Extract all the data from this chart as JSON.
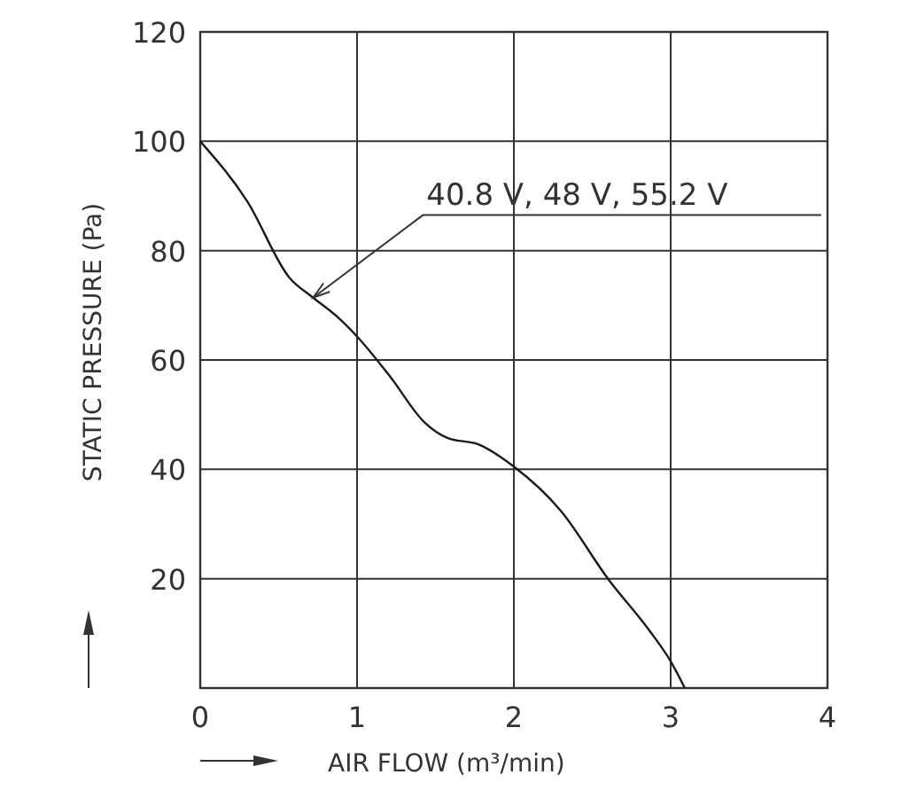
{
  "chart_data": {
    "type": "line",
    "xlabel": "AIR FLOW (m³/min)",
    "ylabel": "STATIC PRESSURE (Pa)",
    "xlim": [
      0,
      4
    ],
    "xticks": [
      0,
      1,
      2,
      3,
      4
    ],
    "ylim": [
      0,
      120
    ],
    "yticks": [
      20,
      40,
      60,
      80,
      100,
      120
    ],
    "grid": true,
    "series": [
      {
        "color": "#1a1a1a",
        "x": [
          0,
          0.3,
          0.57,
          0.72,
          0.87,
          1.0,
          1.21,
          1.43,
          1.58,
          1.77,
          2.0,
          2.3,
          2.6,
          2.87,
          3.0,
          3.09
        ],
        "values": [
          100,
          89,
          75,
          71.4,
          68,
          64.3,
          57,
          48.6,
          45.7,
          44.6,
          40.5,
          32.4,
          20,
          10.3,
          4.9,
          0
        ]
      }
    ],
    "annotations": [
      {
        "text": "40.8 V, 48 V, 55.2 V",
        "x": 0.72,
        "y": 71.4
      }
    ]
  }
}
